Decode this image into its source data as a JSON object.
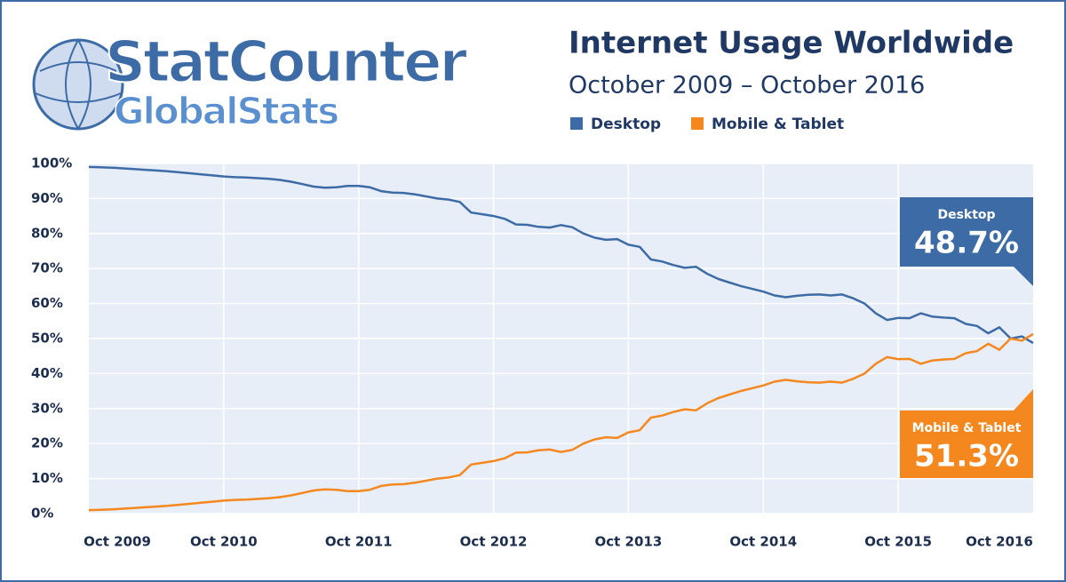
{
  "logo": {
    "name": "StatCounter",
    "sub": "GlobalStats"
  },
  "chart_data": {
    "type": "line",
    "title": "Internet Usage Worldwide",
    "subtitle": "October 2009 – October 2016",
    "categories": [
      "Oct 2009",
      null,
      null,
      null,
      null,
      null,
      null,
      null,
      null,
      null,
      null,
      null,
      "Oct 2010",
      null,
      null,
      null,
      null,
      null,
      null,
      null,
      null,
      null,
      null,
      null,
      "Oct 2011",
      null,
      null,
      null,
      null,
      null,
      null,
      null,
      null,
      null,
      null,
      null,
      "Oct 2012",
      null,
      null,
      null,
      null,
      null,
      null,
      null,
      null,
      null,
      null,
      null,
      "Oct 2013",
      null,
      null,
      null,
      null,
      null,
      null,
      null,
      null,
      null,
      null,
      null,
      "Oct 2014",
      null,
      null,
      null,
      null,
      null,
      null,
      null,
      null,
      null,
      null,
      null,
      "Oct 2015",
      null,
      null,
      null,
      null,
      null,
      null,
      null,
      null,
      null,
      null,
      null,
      "Oct 2016"
    ],
    "series": [
      {
        "name": "Desktop",
        "color": "#3d6ba6",
        "values": [
          99.0,
          98.9,
          98.8,
          98.6,
          98.4,
          98.2,
          98.0,
          97.8,
          97.5,
          97.2,
          96.9,
          96.6,
          96.3,
          96.1,
          96.0,
          95.8,
          95.6,
          95.3,
          94.8,
          94.1,
          93.4,
          93.1,
          93.2,
          93.6,
          93.6,
          93.2,
          92.1,
          91.7,
          91.6,
          91.2,
          90.6,
          90.0,
          89.7,
          89.0,
          86.0,
          85.5,
          85.0,
          84.2,
          82.6,
          82.5,
          81.9,
          81.7,
          82.4,
          81.8,
          80.0,
          78.8,
          78.2,
          78.4,
          76.8,
          76.2,
          72.6,
          72.0,
          71.0,
          70.2,
          70.5,
          68.5,
          67.0,
          66.0,
          65.0,
          64.2,
          63.4,
          62.3,
          61.8,
          62.2,
          62.5,
          62.6,
          62.3,
          62.6,
          61.5,
          60.0,
          57.2,
          55.3,
          55.9,
          55.8,
          57.2,
          56.3,
          56.0,
          55.8,
          54.2,
          53.6,
          51.5,
          53.2,
          50.0,
          50.6,
          48.7
        ],
        "value_labels": [
          null,
          null,
          null,
          null,
          null,
          null,
          null,
          null,
          null,
          null,
          null,
          null,
          null,
          null,
          null,
          null,
          null,
          null,
          null,
          null,
          null,
          null,
          null,
          null,
          null,
          null,
          null,
          null,
          null,
          null,
          null,
          null,
          null,
          null,
          null,
          null,
          null,
          null,
          null,
          null,
          null,
          null,
          null,
          null,
          null,
          null,
          null,
          null,
          null,
          null,
          null,
          null,
          null,
          null,
          null,
          null,
          null,
          null,
          null,
          null,
          null,
          null,
          null,
          null,
          null,
          null,
          null,
          null,
          null,
          null,
          null,
          null,
          null,
          null,
          null,
          null,
          null,
          null,
          null,
          null,
          null,
          null,
          null,
          null,
          "48.7%"
        ]
      },
      {
        "name": "Mobile & Tablet",
        "color": "#f5871f",
        "values": [
          1.0,
          1.1,
          1.2,
          1.4,
          1.6,
          1.8,
          2.0,
          2.2,
          2.5,
          2.8,
          3.1,
          3.4,
          3.7,
          3.9,
          4.0,
          4.2,
          4.4,
          4.7,
          5.2,
          5.9,
          6.6,
          6.9,
          6.8,
          6.4,
          6.4,
          6.8,
          7.9,
          8.3,
          8.4,
          8.8,
          9.4,
          10.0,
          10.3,
          11.0,
          14.0,
          14.5,
          15.0,
          15.8,
          17.4,
          17.5,
          18.1,
          18.3,
          17.6,
          18.2,
          20.0,
          21.2,
          21.8,
          21.6,
          23.2,
          23.8,
          27.4,
          28.0,
          29.0,
          29.8,
          29.5,
          31.5,
          33.0,
          34.0,
          35.0,
          35.8,
          36.6,
          37.7,
          38.2,
          37.8,
          37.5,
          37.4,
          37.7,
          37.4,
          38.5,
          40.0,
          42.8,
          44.7,
          44.1,
          44.2,
          42.8,
          43.7,
          44.0,
          44.2,
          45.8,
          46.4,
          48.5,
          46.8,
          50.0,
          49.4,
          51.3
        ],
        "value_labels": [
          null,
          null,
          null,
          null,
          null,
          null,
          null,
          null,
          null,
          null,
          null,
          null,
          null,
          null,
          null,
          null,
          null,
          null,
          null,
          null,
          null,
          null,
          null,
          null,
          null,
          null,
          null,
          null,
          null,
          null,
          null,
          null,
          null,
          null,
          null,
          null,
          null,
          null,
          null,
          null,
          null,
          null,
          null,
          null,
          null,
          null,
          null,
          null,
          null,
          null,
          null,
          null,
          null,
          null,
          null,
          null,
          null,
          null,
          null,
          null,
          null,
          null,
          null,
          null,
          null,
          null,
          null,
          null,
          null,
          null,
          null,
          null,
          null,
          null,
          null,
          null,
          null,
          null,
          null,
          null,
          null,
          null,
          null,
          null,
          "51.3%"
        ]
      }
    ],
    "ylim": [
      0,
      100
    ],
    "yticks": [
      {
        "value": 0,
        "label": "0%"
      },
      {
        "value": 10,
        "label": "10%"
      },
      {
        "value": 20,
        "label": "20%"
      },
      {
        "value": 30,
        "label": "30%"
      },
      {
        "value": 40,
        "label": "40%"
      },
      {
        "value": 50,
        "label": "50%"
      },
      {
        "value": 60,
        "label": "60%"
      },
      {
        "value": 70,
        "label": "70%"
      },
      {
        "value": 80,
        "label": "80%"
      },
      {
        "value": 90,
        "label": "90%"
      },
      {
        "value": 100,
        "label": "100%"
      }
    ],
    "grid": true,
    "legend": "top"
  }
}
